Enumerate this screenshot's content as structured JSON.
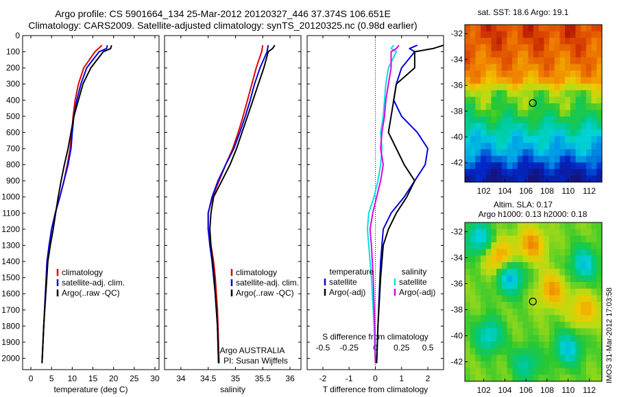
{
  "header": {
    "line1": "Argo profile: CS 5901664_134 25-Mar-2012 20120327_446 37.374S 106.651E",
    "line2": "Climatology: CARS2009. Satellite-adjusted climatology: synTS_20120325.nc (0.98d earlier)"
  },
  "sidebar_text": "IMOS 31-Mar-2012 17:03:58",
  "colors": {
    "red": "#e00000",
    "blue": "#0000e0",
    "black": "#000000",
    "cyan": "#00e0e0",
    "magenta": "#e000e0"
  },
  "chart_data": [
    {
      "type": "line",
      "xlabel": "temperature (deg C)",
      "ylabel": "",
      "xlim": [
        -2,
        31
      ],
      "ylim": [
        2070,
        0
      ],
      "y_reversed": true,
      "x_ticks": [
        0,
        5,
        10,
        15,
        20,
        25,
        30
      ],
      "y_ticks": [
        0,
        100,
        200,
        300,
        400,
        500,
        600,
        700,
        800,
        900,
        1000,
        1100,
        1200,
        1300,
        1400,
        1500,
        1600,
        1700,
        1800,
        1900,
        2000
      ],
      "legend": [
        "climatology",
        "satellite-adj. clim.",
        "Argo(..raw -QC)"
      ],
      "legend_placement": "lower-center",
      "series": [
        {
          "name": "climatology",
          "color": "#e00000",
          "points": [
            [
              17.2,
              60
            ],
            [
              15.5,
              100
            ],
            [
              12.8,
              200
            ],
            [
              11.5,
              300
            ],
            [
              10.7,
              400
            ],
            [
              10.2,
              500
            ],
            [
              9.9,
              600
            ],
            [
              9.5,
              700
            ],
            [
              8.8,
              800
            ],
            [
              8,
              900
            ],
            [
              7,
              1000
            ],
            [
              5.9,
              1100
            ],
            [
              5,
              1200
            ],
            [
              4.4,
              1300
            ],
            [
              3.9,
              1400
            ],
            [
              3.5,
              1600
            ],
            [
              3.1,
              1800
            ],
            [
              2.7,
              2030
            ]
          ]
        },
        {
          "name": "satellite-adj. clim.",
          "color": "#0000e0",
          "points": [
            [
              18.5,
              60
            ],
            [
              18.3,
              80
            ],
            [
              16.5,
              100
            ],
            [
              13.5,
              200
            ],
            [
              12.1,
              300
            ],
            [
              11.1,
              400
            ],
            [
              10.4,
              500
            ],
            [
              10,
              600
            ],
            [
              9.7,
              700
            ],
            [
              9,
              800
            ],
            [
              8,
              900
            ],
            [
              7,
              1000
            ],
            [
              5.9,
              1100
            ],
            [
              5,
              1200
            ],
            [
              4.4,
              1300
            ],
            [
              3.9,
              1400
            ],
            [
              3.5,
              1600
            ],
            [
              3.1,
              1800
            ],
            [
              2.7,
              2030
            ]
          ]
        },
        {
          "name": "Argo(..raw -QC)",
          "color": "#000000",
          "points": [
            [
              19.5,
              60
            ],
            [
              19.3,
              80
            ],
            [
              17.5,
              100
            ],
            [
              14.5,
              200
            ],
            [
              12.6,
              300
            ],
            [
              11.5,
              400
            ],
            [
              10.4,
              500
            ],
            [
              9.7,
              600
            ],
            [
              9,
              700
            ],
            [
              8.1,
              800
            ],
            [
              7.3,
              900
            ],
            [
              6.6,
              1000
            ],
            [
              6,
              1100
            ],
            [
              5.4,
              1200
            ],
            [
              4.7,
              1300
            ],
            [
              4.1,
              1400
            ],
            [
              3.6,
              1600
            ],
            [
              3.1,
              1800
            ],
            [
              2.7,
              2030
            ]
          ]
        }
      ]
    },
    {
      "type": "line",
      "xlabel": "salinity",
      "xlim": [
        33.7,
        36.2
      ],
      "ylim": [
        2070,
        0
      ],
      "y_reversed": true,
      "x_ticks": [
        34,
        34.5,
        35,
        35.5,
        36
      ],
      "legend": [
        "climatology",
        "satellite-adj. clim.",
        "Argo(..raw -QC)"
      ],
      "legend_placement": "lower-right",
      "annotation": [
        "Argo AUSTRALIA",
        "PI: Susan Wijffels"
      ],
      "series": [
        {
          "name": "climatology",
          "color": "#e00000",
          "points": [
            [
              35.5,
              60
            ],
            [
              35.48,
              100
            ],
            [
              35.38,
              200
            ],
            [
              35.3,
              300
            ],
            [
              35.22,
              400
            ],
            [
              35.14,
              500
            ],
            [
              35.05,
              600
            ],
            [
              34.95,
              700
            ],
            [
              34.82,
              800
            ],
            [
              34.7,
              900
            ],
            [
              34.58,
              1000
            ],
            [
              34.5,
              1100
            ],
            [
              34.5,
              1200
            ],
            [
              34.55,
              1300
            ],
            [
              34.6,
              1400
            ],
            [
              34.63,
              1500
            ],
            [
              34.65,
              1600
            ],
            [
              34.67,
              1700
            ],
            [
              34.68,
              1800
            ],
            [
              34.7,
              2030
            ]
          ]
        },
        {
          "name": "satellite-adj. clim.",
          "color": "#0000e0",
          "points": [
            [
              35.6,
              60
            ],
            [
              35.58,
              100
            ],
            [
              35.45,
              200
            ],
            [
              35.35,
              300
            ],
            [
              35.27,
              400
            ],
            [
              35.18,
              500
            ],
            [
              35.08,
              600
            ],
            [
              34.97,
              700
            ],
            [
              34.82,
              800
            ],
            [
              34.68,
              900
            ],
            [
              34.57,
              1000
            ],
            [
              34.5,
              1100
            ],
            [
              34.5,
              1200
            ],
            [
              34.53,
              1300
            ],
            [
              34.57,
              1400
            ],
            [
              34.6,
              1500
            ],
            [
              34.63,
              1600
            ],
            [
              34.65,
              1700
            ],
            [
              34.67,
              1800
            ],
            [
              34.69,
              2030
            ]
          ]
        },
        {
          "name": "Argo(..raw -QC)",
          "color": "#000000",
          "points": [
            [
              35.72,
              60
            ],
            [
              35.68,
              80
            ],
            [
              35.6,
              100
            ],
            [
              35.52,
              200
            ],
            [
              35.42,
              300
            ],
            [
              35.32,
              400
            ],
            [
              35.22,
              500
            ],
            [
              35.12,
              600
            ],
            [
              35.02,
              700
            ],
            [
              34.9,
              800
            ],
            [
              34.75,
              900
            ],
            [
              34.6,
              1000
            ],
            [
              34.55,
              1100
            ],
            [
              34.53,
              1200
            ],
            [
              34.55,
              1300
            ],
            [
              34.58,
              1400
            ],
            [
              34.61,
              1500
            ],
            [
              34.63,
              1600
            ],
            [
              34.65,
              1700
            ],
            [
              34.67,
              1800
            ],
            [
              34.69,
              2030
            ]
          ]
        }
      ]
    },
    {
      "type": "line",
      "xlabel": "T difference from climatology",
      "top_axis_label": "S difference from climatology",
      "xlim": [
        -2.6,
        2.6
      ],
      "ylim": [
        2070,
        0
      ],
      "y_reversed": true,
      "x_ticks_bottom": [
        -2,
        -1,
        0,
        1,
        2
      ],
      "x_ticks_top": [
        -0.5,
        -0.25,
        0,
        0.25,
        0.5
      ],
      "legend_headings": [
        "temperature",
        "salinity"
      ],
      "legend": [
        "satellite",
        "Argo(-adj)",
        "satellite",
        "Argo(-adj)"
      ],
      "legend_placement": "lower-center",
      "series": [
        {
          "name": "satellite",
          "group": "temperature",
          "color": "#0000e0",
          "points": [
            [
              1.6,
              60
            ],
            [
              1.3,
              80
            ],
            [
              1.5,
              100
            ],
            [
              1,
              200
            ],
            [
              0.8,
              300
            ],
            [
              0.7,
              400
            ],
            [
              1,
              500
            ],
            [
              1.6,
              600
            ],
            [
              2,
              700
            ],
            [
              1.9,
              800
            ],
            [
              1.5,
              900
            ],
            [
              1.1,
              1000
            ],
            [
              0.6,
              1100
            ],
            [
              0.3,
              1200
            ],
            [
              0.2,
              1400
            ],
            [
              0.15,
              1600
            ],
            [
              0.1,
              1800
            ],
            [
              0.05,
              2030
            ]
          ]
        },
        {
          "name": "Argo(-adj)",
          "group": "temperature",
          "color": "#000000",
          "points": [
            [
              2.6,
              60
            ],
            [
              2.2,
              80
            ],
            [
              1.5,
              100
            ],
            [
              1.5,
              200
            ],
            [
              0.8,
              300
            ],
            [
              0.7,
              400
            ],
            [
              0.6,
              500
            ],
            [
              0.5,
              600
            ],
            [
              0.8,
              700
            ],
            [
              1.1,
              800
            ],
            [
              1.5,
              900
            ],
            [
              1.2,
              1000
            ],
            [
              0.8,
              1100
            ],
            [
              0.5,
              1200
            ],
            [
              0.3,
              1300
            ],
            [
              0.2,
              1500
            ],
            [
              0.1,
              1800
            ],
            [
              0.05,
              2030
            ]
          ]
        },
        {
          "name": "satellite",
          "group": "salinity",
          "color": "#00e0e0",
          "points": [
            [
              0.7,
              60
            ],
            [
              0.6,
              80
            ],
            [
              0.8,
              100
            ],
            [
              0.5,
              200
            ],
            [
              0.4,
              300
            ],
            [
              0.35,
              400
            ],
            [
              0.3,
              500
            ],
            [
              0.2,
              600
            ],
            [
              0.25,
              700
            ],
            [
              0.2,
              800
            ],
            [
              0.1,
              900
            ],
            [
              -0.05,
              1000
            ],
            [
              -0.25,
              1100
            ],
            [
              -0.3,
              1200
            ],
            [
              -0.25,
              1300
            ],
            [
              -0.15,
              1500
            ],
            [
              -0.05,
              1800
            ],
            [
              0,
              2030
            ]
          ]
        },
        {
          "name": "Argo(-adj)",
          "group": "salinity",
          "color": "#e000e0",
          "points": [
            [
              0.9,
              60
            ],
            [
              0.8,
              80
            ],
            [
              0.6,
              100
            ],
            [
              0.6,
              200
            ],
            [
              0.5,
              300
            ],
            [
              0.4,
              400
            ],
            [
              0.35,
              500
            ],
            [
              0.25,
              600
            ],
            [
              0.2,
              700
            ],
            [
              0.3,
              800
            ],
            [
              0.2,
              900
            ],
            [
              0.05,
              1000
            ],
            [
              -0.1,
              1100
            ],
            [
              -0.2,
              1200
            ],
            [
              -0.15,
              1300
            ],
            [
              -0.08,
              1500
            ],
            [
              -0.02,
              1800
            ],
            [
              0,
              2030
            ]
          ]
        }
      ]
    },
    {
      "type": "heatmap",
      "title": "sat. SST: 18.6 Argo: 19.1",
      "x_ticks": [
        102,
        104,
        106,
        108,
        110,
        112
      ],
      "y_ticks": [
        -32,
        -34,
        -36,
        -38,
        -40,
        -42
      ],
      "xlim": [
        100.2,
        113.2
      ],
      "ylim": [
        -43.5,
        -31.3
      ],
      "marker": {
        "lon": 106.651,
        "lat": -37.374
      },
      "palette": "sst",
      "bands_by_lat": [
        {
          "lat": -32,
          "value": 0.92
        },
        {
          "lat": -34,
          "value": 0.85
        },
        {
          "lat": -35.5,
          "value": 0.78
        },
        {
          "lat": -36.5,
          "value": 0.58
        },
        {
          "lat": -38,
          "value": 0.52
        },
        {
          "lat": -39,
          "value": 0.42
        },
        {
          "lat": -40,
          "value": 0.32
        },
        {
          "lat": -41,
          "value": 0.26
        },
        {
          "lat": -42,
          "value": 0.15
        },
        {
          "lat": -43,
          "value": 0.05
        }
      ]
    },
    {
      "type": "heatmap",
      "title_line1": "Altim. SLA: 0.17",
      "title_line2": "Argo h1000: 0.13 h2000: 0.18",
      "x_ticks": [
        102,
        104,
        106,
        108,
        110,
        112
      ],
      "y_ticks": [
        -32,
        -34,
        -36,
        -38,
        -40,
        -42
      ],
      "xlim": [
        100.2,
        113.2
      ],
      "ylim": [
        -43.5,
        -31.3
      ],
      "marker": {
        "lon": 106.651,
        "lat": -37.374
      },
      "palette": "sla",
      "features": [
        {
          "lon": 103.5,
          "lat": -34,
          "value": 0.8
        },
        {
          "lon": 106.5,
          "lat": -33,
          "value": 0.8
        },
        {
          "lon": 108.5,
          "lat": -36.5,
          "value": 0.78
        },
        {
          "lon": 101.5,
          "lat": -32.5,
          "value": 0.3
        },
        {
          "lon": 104.5,
          "lat": -35.5,
          "value": 0.25
        },
        {
          "lon": 111.5,
          "lat": -34.5,
          "value": 0.3
        },
        {
          "lon": 110,
          "lat": -41,
          "value": 0.3
        },
        {
          "lon": 102.5,
          "lat": -40,
          "value": 0.32
        },
        {
          "lon": 111.5,
          "lat": -38,
          "value": 0.75
        },
        {
          "lon": 106,
          "lat": -42.2,
          "value": 0.38
        }
      ]
    }
  ]
}
